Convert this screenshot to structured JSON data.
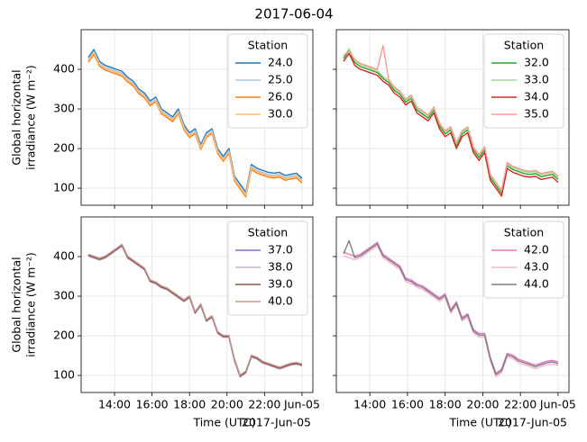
{
  "title": "2017-06-04",
  "chart_data": [
    {
      "type": "line",
      "ylabel": [
        "Global horizontal",
        "irradiance (W m⁻²)"
      ],
      "legend_title": "Station",
      "legend": "upper right",
      "grid": true,
      "x": [
        12.6,
        12.9,
        13.2,
        13.5,
        13.8,
        14.1,
        14.4,
        14.7,
        15.0,
        15.3,
        15.6,
        15.9,
        16.2,
        16.5,
        16.8,
        17.1,
        17.4,
        17.7,
        18.0,
        18.3,
        18.6,
        18.9,
        19.2,
        19.5,
        19.8,
        20.1,
        20.4,
        20.7,
        21.0,
        21.3,
        21.6,
        21.9,
        22.2,
        22.5,
        22.8,
        23.1,
        23.4,
        23.7,
        24.0
      ],
      "xlim": [
        12.22,
        24.58
      ],
      "xticks": [
        14,
        16,
        18,
        20,
        22,
        24
      ],
      "ylim": [
        57,
        500
      ],
      "yticks": [
        100,
        200,
        300,
        400
      ],
      "series": [
        {
          "name": "24.0",
          "color": "#1f77b4",
          "values": [
            430,
            450,
            420,
            410,
            405,
            400,
            395,
            380,
            370,
            350,
            340,
            320,
            330,
            300,
            290,
            280,
            300,
            260,
            240,
            250,
            210,
            240,
            250,
            200,
            180,
            200,
            130,
            110,
            90,
            160,
            150,
            145,
            140,
            138,
            140,
            132,
            135,
            138,
            125
          ]
        },
        {
          "name": "25.0",
          "color": "#aec7e8",
          "values": [
            425,
            445,
            415,
            405,
            400,
            395,
            390,
            375,
            365,
            345,
            335,
            315,
            325,
            295,
            285,
            275,
            295,
            255,
            235,
            245,
            205,
            235,
            245,
            195,
            175,
            195,
            125,
            105,
            85,
            155,
            145,
            140,
            135,
            133,
            135,
            127,
            130,
            133,
            120
          ]
        },
        {
          "name": "26.0",
          "color": "#ff7f0e",
          "values": [
            418,
            438,
            408,
            398,
            393,
            388,
            383,
            368,
            358,
            338,
            328,
            308,
            318,
            288,
            278,
            268,
            288,
            248,
            228,
            238,
            198,
            228,
            238,
            188,
            168,
            188,
            118,
            98,
            78,
            148,
            138,
            133,
            128,
            126,
            128,
            120,
            123,
            126,
            113
          ]
        },
        {
          "name": "30.0",
          "color": "#ffbb78",
          "values": [
            422,
            442,
            412,
            402,
            397,
            392,
            387,
            372,
            362,
            342,
            332,
            312,
            322,
            292,
            282,
            272,
            292,
            252,
            232,
            242,
            202,
            232,
            242,
            192,
            172,
            192,
            122,
            102,
            82,
            152,
            142,
            137,
            132,
            130,
            132,
            124,
            127,
            130,
            117
          ]
        }
      ]
    },
    {
      "type": "line",
      "legend_title": "Station",
      "legend": "upper right",
      "grid": true,
      "x": [
        12.6,
        12.9,
        13.2,
        13.5,
        13.8,
        14.1,
        14.4,
        14.7,
        15.0,
        15.3,
        15.6,
        15.9,
        16.2,
        16.5,
        16.8,
        17.1,
        17.4,
        17.7,
        18.0,
        18.3,
        18.6,
        18.9,
        19.2,
        19.5,
        19.8,
        20.1,
        20.4,
        20.7,
        21.0,
        21.3,
        21.6,
        21.9,
        22.2,
        22.5,
        22.8,
        23.1,
        23.4,
        23.7,
        24.0
      ],
      "xlim": [
        12.22,
        24.58
      ],
      "xticks": [
        14,
        16,
        18,
        20,
        22,
        24
      ],
      "ylim": [
        57,
        500
      ],
      "yticks": [
        100,
        200,
        300,
        400
      ],
      "series": [
        {
          "name": "32.0",
          "color": "#2ca02c",
          "values": [
            427,
            447,
            417,
            407,
            402,
            397,
            392,
            377,
            367,
            347,
            337,
            317,
            327,
            297,
            287,
            277,
            297,
            257,
            237,
            247,
            207,
            237,
            247,
            197,
            177,
            197,
            127,
            107,
            87,
            157,
            147,
            142,
            137,
            135,
            137,
            129,
            132,
            135,
            122
          ]
        },
        {
          "name": "33.0",
          "color": "#98df8a",
          "values": [
            432,
            452,
            422,
            412,
            407,
            402,
            397,
            382,
            372,
            352,
            342,
            322,
            332,
            302,
            292,
            282,
            302,
            262,
            242,
            252,
            212,
            242,
            252,
            202,
            182,
            202,
            132,
            112,
            92,
            162,
            152,
            147,
            142,
            140,
            142,
            134,
            137,
            140,
            127
          ]
        },
        {
          "name": "34.0",
          "color": "#d62728",
          "values": [
            420,
            440,
            410,
            400,
            395,
            390,
            385,
            370,
            360,
            340,
            330,
            310,
            320,
            290,
            280,
            270,
            290,
            250,
            230,
            240,
            200,
            230,
            240,
            190,
            170,
            190,
            120,
            100,
            80,
            150,
            140,
            135,
            130,
            128,
            130,
            122,
            125,
            128,
            115
          ]
        },
        {
          "name": "35.0",
          "color": "#ff9896",
          "values": [
            435,
            445,
            425,
            415,
            410,
            405,
            400,
            460,
            375,
            355,
            345,
            325,
            335,
            305,
            295,
            285,
            305,
            265,
            245,
            255,
            215,
            245,
            255,
            205,
            185,
            205,
            135,
            115,
            95,
            165,
            155,
            150,
            145,
            143,
            145,
            137,
            140,
            143,
            130
          ]
        }
      ]
    },
    {
      "type": "line",
      "ylabel": [
        "Global horizontal",
        "irradiance (W m⁻²)"
      ],
      "xlabel": "Time (UTC)",
      "x_offset_label": "2017-Jun-05",
      "legend_title": "Station",
      "legend": "upper right",
      "grid": true,
      "x": [
        12.6,
        12.9,
        13.2,
        13.5,
        13.8,
        14.1,
        14.4,
        14.7,
        15.0,
        15.3,
        15.6,
        15.9,
        16.2,
        16.5,
        16.8,
        17.1,
        17.4,
        17.7,
        18.0,
        18.3,
        18.6,
        18.9,
        19.2,
        19.5,
        19.8,
        20.1,
        20.4,
        20.7,
        21.0,
        21.3,
        21.6,
        21.9,
        22.2,
        22.5,
        22.8,
        23.1,
        23.4,
        23.7,
        24.0
      ],
      "xlim": [
        12.22,
        24.58
      ],
      "xticks": [
        {
          "value": 14,
          "label": "14:00"
        },
        {
          "value": 16,
          "label": "16:00"
        },
        {
          "value": 18,
          "label": "18:00"
        },
        {
          "value": 20,
          "label": "20:00"
        },
        {
          "value": 22,
          "label": "22:00"
        },
        {
          "value": 24,
          "label": "Jun-05"
        }
      ],
      "ylim": [
        57,
        500
      ],
      "yticks": [
        100,
        200,
        300,
        400
      ],
      "series": [
        {
          "name": "37.0",
          "color": "#9467bd",
          "values": [
            405,
            400,
            395,
            400,
            410,
            420,
            430,
            400,
            390,
            380,
            370,
            340,
            335,
            325,
            320,
            310,
            300,
            290,
            300,
            260,
            280,
            240,
            250,
            210,
            200,
            200,
            140,
            100,
            110,
            150,
            145,
            135,
            130,
            125,
            120,
            125,
            130,
            132,
            128
          ]
        },
        {
          "name": "38.0",
          "color": "#c5b0d5",
          "values": [
            401,
            396,
            391,
            396,
            406,
            416,
            426,
            396,
            386,
            376,
            366,
            336,
            331,
            321,
            316,
            306,
            296,
            286,
            296,
            256,
            276,
            236,
            246,
            206,
            196,
            196,
            136,
            96,
            106,
            146,
            141,
            131,
            126,
            121,
            116,
            121,
            126,
            128,
            124
          ]
        },
        {
          "name": "39.0",
          "color": "#8c564b",
          "values": [
            403,
            398,
            393,
            398,
            408,
            418,
            428,
            398,
            388,
            378,
            368,
            338,
            333,
            323,
            318,
            308,
            298,
            288,
            298,
            258,
            278,
            238,
            248,
            208,
            198,
            198,
            138,
            98,
            108,
            148,
            143,
            133,
            128,
            123,
            118,
            123,
            128,
            130,
            126
          ]
        },
        {
          "name": "40.0",
          "color": "#c49c94",
          "values": [
            406,
            401,
            396,
            401,
            411,
            421,
            431,
            401,
            391,
            381,
            371,
            341,
            336,
            326,
            321,
            311,
            301,
            291,
            301,
            261,
            281,
            241,
            251,
            211,
            201,
            201,
            141,
            101,
            111,
            151,
            146,
            136,
            131,
            126,
            121,
            126,
            131,
            133,
            129
          ]
        }
      ]
    },
    {
      "type": "line",
      "xlabel": "Time (UTC)",
      "x_offset_label": "2017-Jun-05",
      "legend_title": "Station",
      "legend": "upper right",
      "grid": true,
      "x": [
        12.6,
        12.9,
        13.2,
        13.5,
        13.8,
        14.1,
        14.4,
        14.7,
        15.0,
        15.3,
        15.6,
        15.9,
        16.2,
        16.5,
        16.8,
        17.1,
        17.4,
        17.7,
        18.0,
        18.3,
        18.6,
        18.9,
        19.2,
        19.5,
        19.8,
        20.1,
        20.4,
        20.7,
        21.0,
        21.3,
        21.6,
        21.9,
        22.2,
        22.5,
        22.8,
        23.1,
        23.4,
        23.7,
        24.0
      ],
      "xlim": [
        12.22,
        24.58
      ],
      "xticks": [
        {
          "value": 14,
          "label": "14:00"
        },
        {
          "value": 16,
          "label": "16:00"
        },
        {
          "value": 18,
          "label": "18:00"
        },
        {
          "value": 20,
          "label": "20:00"
        },
        {
          "value": 22,
          "label": "22:00"
        },
        {
          "value": 24,
          "label": "Jun-05"
        }
      ],
      "ylim": [
        57,
        500
      ],
      "yticks": [
        100,
        200,
        300,
        400
      ],
      "series": [
        {
          "name": "42.0",
          "color": "#e377c2",
          "values": [
            411,
            406,
            401,
            406,
            416,
            426,
            436,
            406,
            396,
            386,
            376,
            346,
            341,
            331,
            326,
            316,
            306,
            296,
            306,
            266,
            286,
            246,
            256,
            216,
            206,
            206,
            146,
            106,
            116,
            156,
            151,
            141,
            136,
            131,
            126,
            131,
            136,
            138,
            134
          ]
        },
        {
          "name": "43.0",
          "color": "#f7b6d2",
          "values": [
            402,
            397,
            392,
            397,
            407,
            417,
            427,
            397,
            387,
            377,
            367,
            337,
            332,
            322,
            317,
            307,
            297,
            287,
            297,
            257,
            277,
            237,
            247,
            207,
            197,
            197,
            137,
            97,
            107,
            147,
            142,
            132,
            127,
            122,
            117,
            122,
            127,
            129,
            125
          ]
        },
        {
          "name": "44.0",
          "color": "#7f7f7f",
          "values": [
            407,
            440,
            397,
            402,
            412,
            422,
            432,
            402,
            392,
            382,
            372,
            342,
            337,
            327,
            322,
            312,
            302,
            292,
            302,
            262,
            282,
            242,
            252,
            212,
            202,
            202,
            142,
            102,
            112,
            152,
            147,
            137,
            132,
            127,
            122,
            127,
            132,
            134,
            130
          ]
        }
      ]
    }
  ]
}
